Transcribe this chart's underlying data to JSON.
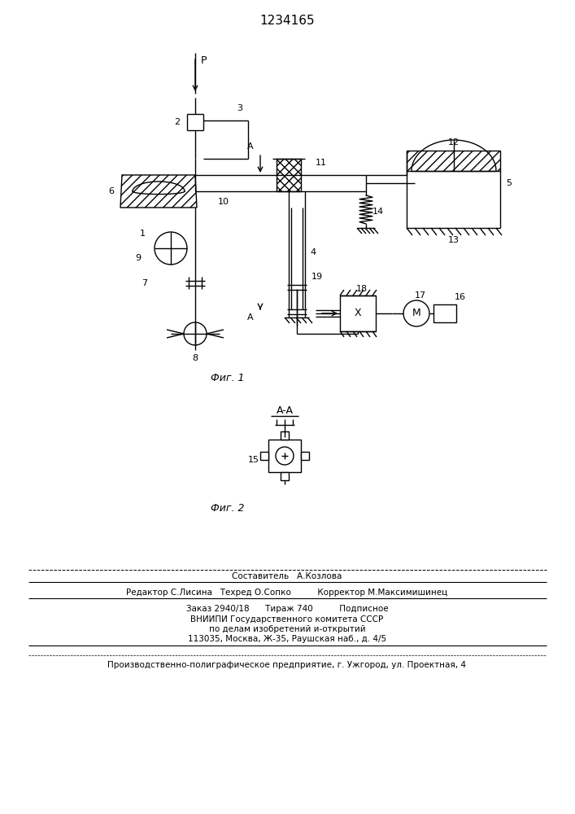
{
  "patent_number": "1234165",
  "fig1_label": "Фиг. 1",
  "fig2_label": "Фиг. 2",
  "bg_color": "#ffffff",
  "line_color": "#000000",
  "footer_line0": "Составитель   А.Козлова",
  "footer_line1": "Редактор С.Лисина   Техред О.Сопко          Корректор М.Максимишинец",
  "footer_line2": "Заказ 2940/18      Тираж 740          Подписное",
  "footer_line3": "ВНИИПИ Государственного комитета СССР",
  "footer_line4": "по делам изобретений и-открытий",
  "footer_line5": "113035, Москва, Ж-35, Раушская наб., д. 4/5",
  "footer_line6": "Производственно-полиграфическое предприятие, г. Ужгород, ул. Проектная, 4"
}
